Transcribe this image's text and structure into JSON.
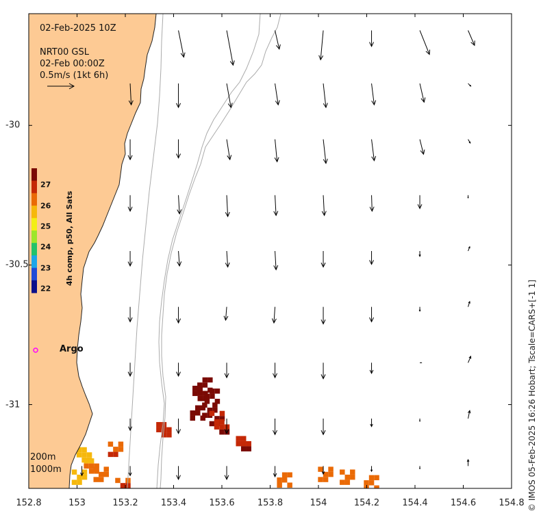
{
  "header": {
    "date_time": "02-Feb-2025 10Z",
    "source": "NRT00 GSL",
    "valid_time": "02-Feb 00:00Z",
    "scale_label": "0.5m/s (1kt 6h)"
  },
  "axes": {
    "x_ticks": [
      "152.8",
      "153",
      "153.2",
      "153.4",
      "153.6",
      "153.8",
      "154",
      "154.2",
      "154.4",
      "154.6",
      "154.8"
    ],
    "y_ticks": [
      "-30",
      "-30.5",
      "-31"
    ],
    "x_range": [
      152.8,
      154.8
    ],
    "y_range": [
      -31.3,
      -29.6
    ]
  },
  "colorbar": {
    "title": "4h comp, p50, All Sats",
    "ticks": [
      "27",
      "26",
      "25",
      "24",
      "23",
      "22"
    ],
    "range": [
      21.8,
      27.8
    ],
    "colors": [
      "#0a0f8a",
      "#1f4bd6",
      "#1ca6e8",
      "#22c26a",
      "#9ee62a",
      "#f3ef14",
      "#f6b80c",
      "#ea6a06",
      "#c42806",
      "#7a0a04"
    ]
  },
  "argo": {
    "label": "Argo",
    "lon": 152.83,
    "lat": -30.82,
    "color": "#ff00ff"
  },
  "contours": {
    "label_200": "200m",
    "label_1000": "1000m"
  },
  "credit": "© IMOS 05-Feb-2025 16:26 Hobart; Tscale=CARS+[-1 1]",
  "colors": {
    "land": "#fdca94",
    "coast": "#222222",
    "isobath": "#aaaaaa",
    "arrow": "#000000"
  },
  "sst_patches": [
    {
      "lon": 153.53,
      "lat": -30.93,
      "sst": 27.6
    },
    {
      "lon": 153.56,
      "lat": -30.97,
      "sst": 27.5
    },
    {
      "lon": 153.55,
      "lat": -31.02,
      "sst": 27.6
    },
    {
      "lon": 153.51,
      "lat": -30.96,
      "sst": 27.4
    },
    {
      "lon": 153.58,
      "lat": -31.05,
      "sst": 27.3
    },
    {
      "lon": 153.5,
      "lat": -31.03,
      "sst": 27.5
    },
    {
      "lon": 153.6,
      "lat": -31.08,
      "sst": 27.1
    },
    {
      "lon": 153.69,
      "lat": -31.14,
      "sst": 27.2
    },
    {
      "lon": 153.36,
      "lat": -31.09,
      "sst": 26.9
    },
    {
      "lon": 153.03,
      "lat": -31.18,
      "sst": 25.8
    },
    {
      "lon": 153.06,
      "lat": -31.22,
      "sst": 26.1
    },
    {
      "lon": 153.01,
      "lat": -31.26,
      "sst": 25.6
    },
    {
      "lon": 153.1,
      "lat": -31.25,
      "sst": 26.2
    },
    {
      "lon": 153.86,
      "lat": -31.27,
      "sst": 26.3
    },
    {
      "lon": 154.03,
      "lat": -31.25,
      "sst": 26.4
    },
    {
      "lon": 154.12,
      "lat": -31.26,
      "sst": 26.3
    },
    {
      "lon": 154.22,
      "lat": -31.28,
      "sst": 26.4
    },
    {
      "lon": 153.19,
      "lat": -31.29,
      "sst": 26.6
    },
    {
      "lon": 153.16,
      "lat": -31.16,
      "sst": 26.5
    }
  ],
  "currents": [
    {
      "lon": 153.42,
      "lat": -29.66,
      "u": 0.1,
      "v": -0.5
    },
    {
      "lon": 153.62,
      "lat": -29.66,
      "u": 0.12,
      "v": -0.65
    },
    {
      "lon": 153.82,
      "lat": -29.66,
      "u": 0.08,
      "v": -0.35
    },
    {
      "lon": 154.02,
      "lat": -29.66,
      "u": -0.05,
      "v": -0.55
    },
    {
      "lon": 154.22,
      "lat": -29.66,
      "u": 0.0,
      "v": -0.3
    },
    {
      "lon": 154.42,
      "lat": -29.66,
      "u": 0.18,
      "v": -0.45
    },
    {
      "lon": 154.62,
      "lat": -29.66,
      "u": 0.12,
      "v": -0.28
    },
    {
      "lon": 153.42,
      "lat": -29.85,
      "u": 0.0,
      "v": -0.45
    },
    {
      "lon": 153.62,
      "lat": -29.85,
      "u": 0.08,
      "v": -0.45
    },
    {
      "lon": 153.82,
      "lat": -29.85,
      "u": 0.06,
      "v": -0.4
    },
    {
      "lon": 154.02,
      "lat": -29.85,
      "u": 0.05,
      "v": -0.45
    },
    {
      "lon": 154.22,
      "lat": -29.85,
      "u": 0.05,
      "v": -0.4
    },
    {
      "lon": 154.42,
      "lat": -29.85,
      "u": 0.08,
      "v": -0.35
    },
    {
      "lon": 154.62,
      "lat": -29.85,
      "u": 0.05,
      "v": -0.05
    },
    {
      "lon": 153.42,
      "lat": -30.05,
      "u": 0.0,
      "v": -0.35
    },
    {
      "lon": 153.62,
      "lat": -30.05,
      "u": 0.06,
      "v": -0.38
    },
    {
      "lon": 153.82,
      "lat": -30.05,
      "u": 0.04,
      "v": -0.42
    },
    {
      "lon": 154.02,
      "lat": -30.05,
      "u": 0.05,
      "v": -0.45
    },
    {
      "lon": 154.22,
      "lat": -30.05,
      "u": 0.05,
      "v": -0.4
    },
    {
      "lon": 154.42,
      "lat": -30.05,
      "u": 0.07,
      "v": -0.28
    },
    {
      "lon": 154.62,
      "lat": -30.05,
      "u": 0.04,
      "v": -0.07
    },
    {
      "lon": 153.42,
      "lat": -30.25,
      "u": 0.02,
      "v": -0.35
    },
    {
      "lon": 153.62,
      "lat": -30.25,
      "u": 0.02,
      "v": -0.4
    },
    {
      "lon": 153.82,
      "lat": -30.25,
      "u": 0.02,
      "v": -0.38
    },
    {
      "lon": 154.02,
      "lat": -30.25,
      "u": 0.02,
      "v": -0.38
    },
    {
      "lon": 154.22,
      "lat": -30.25,
      "u": 0.01,
      "v": -0.3
    },
    {
      "lon": 154.42,
      "lat": -30.25,
      "u": 0.0,
      "v": -0.25
    },
    {
      "lon": 154.62,
      "lat": -30.25,
      "u": 0.0,
      "v": -0.05
    },
    {
      "lon": 153.42,
      "lat": -30.45,
      "u": 0.02,
      "v": -0.28
    },
    {
      "lon": 153.62,
      "lat": -30.45,
      "u": 0.02,
      "v": -0.3
    },
    {
      "lon": 153.82,
      "lat": -30.45,
      "u": 0.02,
      "v": -0.35
    },
    {
      "lon": 154.02,
      "lat": -30.45,
      "u": 0.0,
      "v": -0.3
    },
    {
      "lon": 154.22,
      "lat": -30.45,
      "u": 0.0,
      "v": -0.25
    },
    {
      "lon": 154.42,
      "lat": -30.45,
      "u": 0.0,
      "v": -0.1
    },
    {
      "lon": 154.62,
      "lat": -30.45,
      "u": 0.03,
      "v": 0.08
    },
    {
      "lon": 153.42,
      "lat": -30.65,
      "u": 0.0,
      "v": -0.3
    },
    {
      "lon": 153.62,
      "lat": -30.65,
      "u": -0.02,
      "v": -0.25
    },
    {
      "lon": 153.82,
      "lat": -30.65,
      "u": -0.02,
      "v": -0.3
    },
    {
      "lon": 154.02,
      "lat": -30.65,
      "u": 0.0,
      "v": -0.32
    },
    {
      "lon": 154.22,
      "lat": -30.65,
      "u": 0.0,
      "v": -0.28
    },
    {
      "lon": 154.42,
      "lat": -30.65,
      "u": 0.0,
      "v": -0.08
    },
    {
      "lon": 154.62,
      "lat": -30.65,
      "u": 0.03,
      "v": 0.1
    },
    {
      "lon": 153.42,
      "lat": -30.85,
      "u": 0.0,
      "v": -0.25
    },
    {
      "lon": 153.62,
      "lat": -30.85,
      "u": 0.0,
      "v": -0.28
    },
    {
      "lon": 153.82,
      "lat": -30.85,
      "u": 0.0,
      "v": -0.28
    },
    {
      "lon": 154.02,
      "lat": -30.85,
      "u": 0.0,
      "v": -0.3
    },
    {
      "lon": 154.22,
      "lat": -30.85,
      "u": 0.0,
      "v": -0.2
    },
    {
      "lon": 154.42,
      "lat": -30.85,
      "u": 0.03,
      "v": 0.0
    },
    {
      "lon": 154.62,
      "lat": -30.85,
      "u": 0.05,
      "v": 0.12
    },
    {
      "lon": 153.42,
      "lat": -31.05,
      "u": 0.0,
      "v": -0.28
    },
    {
      "lon": 153.62,
      "lat": -31.05,
      "u": 0.0,
      "v": -0.28
    },
    {
      "lon": 153.82,
      "lat": -31.05,
      "u": 0.0,
      "v": -0.3
    },
    {
      "lon": 154.02,
      "lat": -31.05,
      "u": 0.0,
      "v": -0.3
    },
    {
      "lon": 154.22,
      "lat": -31.05,
      "u": 0.0,
      "v": -0.15
    },
    {
      "lon": 154.42,
      "lat": -31.05,
      "u": 0.0,
      "v": -0.05
    },
    {
      "lon": 154.62,
      "lat": -31.05,
      "u": 0.03,
      "v": 0.15
    },
    {
      "lon": 153.42,
      "lat": -31.22,
      "u": 0.0,
      "v": -0.25
    },
    {
      "lon": 153.62,
      "lat": -31.22,
      "u": 0.0,
      "v": -0.25
    },
    {
      "lon": 153.82,
      "lat": -31.22,
      "u": 0.0,
      "v": -0.2
    },
    {
      "lon": 154.02,
      "lat": -31.22,
      "u": 0.0,
      "v": -0.15
    },
    {
      "lon": 154.22,
      "lat": -31.22,
      "u": 0.0,
      "v": -0.1
    },
    {
      "lon": 154.42,
      "lat": -31.22,
      "u": 0.0,
      "v": -0.05
    },
    {
      "lon": 154.62,
      "lat": -31.22,
      "u": 0.0,
      "v": 0.12
    },
    {
      "lon": 153.22,
      "lat": -29.85,
      "u": 0.02,
      "v": -0.4
    },
    {
      "lon": 153.22,
      "lat": -30.05,
      "u": 0.0,
      "v": -0.38
    },
    {
      "lon": 153.22,
      "lat": -30.25,
      "u": 0.0,
      "v": -0.3
    },
    {
      "lon": 153.22,
      "lat": -30.45,
      "u": 0.0,
      "v": -0.28
    },
    {
      "lon": 153.22,
      "lat": -30.65,
      "u": 0.0,
      "v": -0.28
    },
    {
      "lon": 153.22,
      "lat": -30.85,
      "u": 0.0,
      "v": -0.25
    },
    {
      "lon": 153.22,
      "lat": -31.05,
      "u": 0.0,
      "v": -0.22
    },
    {
      "lon": 153.22,
      "lat": -31.22,
      "u": 0.0,
      "v": -0.18
    },
    {
      "lon": 153.02,
      "lat": -31.22,
      "u": 0.0,
      "v": -0.18
    }
  ]
}
